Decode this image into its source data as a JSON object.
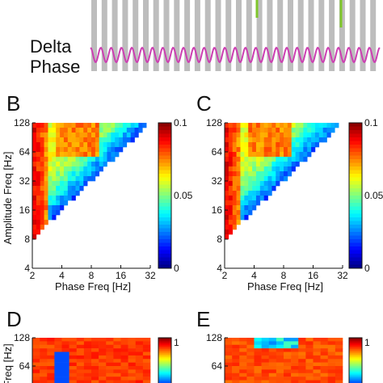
{
  "top_strip": {
    "label_line1": "Delta",
    "label_line2": "Phase",
    "cycles": 28,
    "bar_color": "#bdbdbd",
    "wave_color": "#cc3fb2",
    "spike_color": "#7fc62b"
  },
  "colors": {
    "jet_stops": [
      "#00007f",
      "#0000ff",
      "#007fff",
      "#00ffff",
      "#7fff7f",
      "#ffff00",
      "#ff7f00",
      "#ff0000",
      "#7f0000"
    ]
  },
  "chart_data": [
    {
      "panel": "B",
      "type": "heatmap",
      "xlabel": "Phase Freq [Hz]",
      "ylabel": "Amplitude Freq [Hz]",
      "x_scale": "log2",
      "y_scale": "log2",
      "xlim": [
        2,
        32
      ],
      "ylim": [
        4,
        128
      ],
      "x_ticks": [
        "2",
        "4",
        "8",
        "16",
        "32"
      ],
      "y_ticks": [
        "4",
        "8",
        "16",
        "32",
        "64",
        "128"
      ],
      "color_range": [
        0,
        0.1
      ],
      "colorbar_ticks": [
        "0",
        "0.05",
        "0.1"
      ],
      "mask": "amplitude freq >= 4 x phase freq",
      "hot_band_phase_hz": [
        2,
        2.8
      ],
      "hot_band_value": 0.09,
      "background_value": 0.06,
      "diagonal_edge_value": 0.02
    },
    {
      "panel": "C",
      "type": "heatmap",
      "xlabel": "Phase Freq [Hz]",
      "ylabel": "",
      "x_scale": "log2",
      "y_scale": "log2",
      "xlim": [
        2,
        32
      ],
      "ylim": [
        4,
        128
      ],
      "x_ticks": [
        "2",
        "4",
        "8",
        "16",
        "32"
      ],
      "y_ticks": [
        "4",
        "8",
        "16",
        "32",
        "64",
        "128"
      ],
      "color_range": [
        0,
        0.1
      ],
      "colorbar_ticks": [
        "0",
        "0.05",
        "0.1"
      ],
      "mask": "amplitude freq >= 4 x phase freq",
      "hot_band_phase_hz": [
        2,
        3
      ],
      "hot_band_value": 0.09,
      "background_value": 0.06,
      "diagonal_edge_value": 0.02
    },
    {
      "panel": "D",
      "type": "heatmap",
      "ylabel": "Freq [Hz]",
      "y_ticks": [
        "64",
        "128"
      ],
      "colorbar_ticks": [
        "1"
      ],
      "color_range": [
        0,
        1
      ],
      "background_value": 0.82
    },
    {
      "panel": "E",
      "type": "heatmap",
      "y_ticks": [
        "64",
        "128"
      ],
      "colorbar_ticks": [
        "1"
      ],
      "color_range": [
        0,
        1
      ],
      "background_value": 0.8
    }
  ]
}
